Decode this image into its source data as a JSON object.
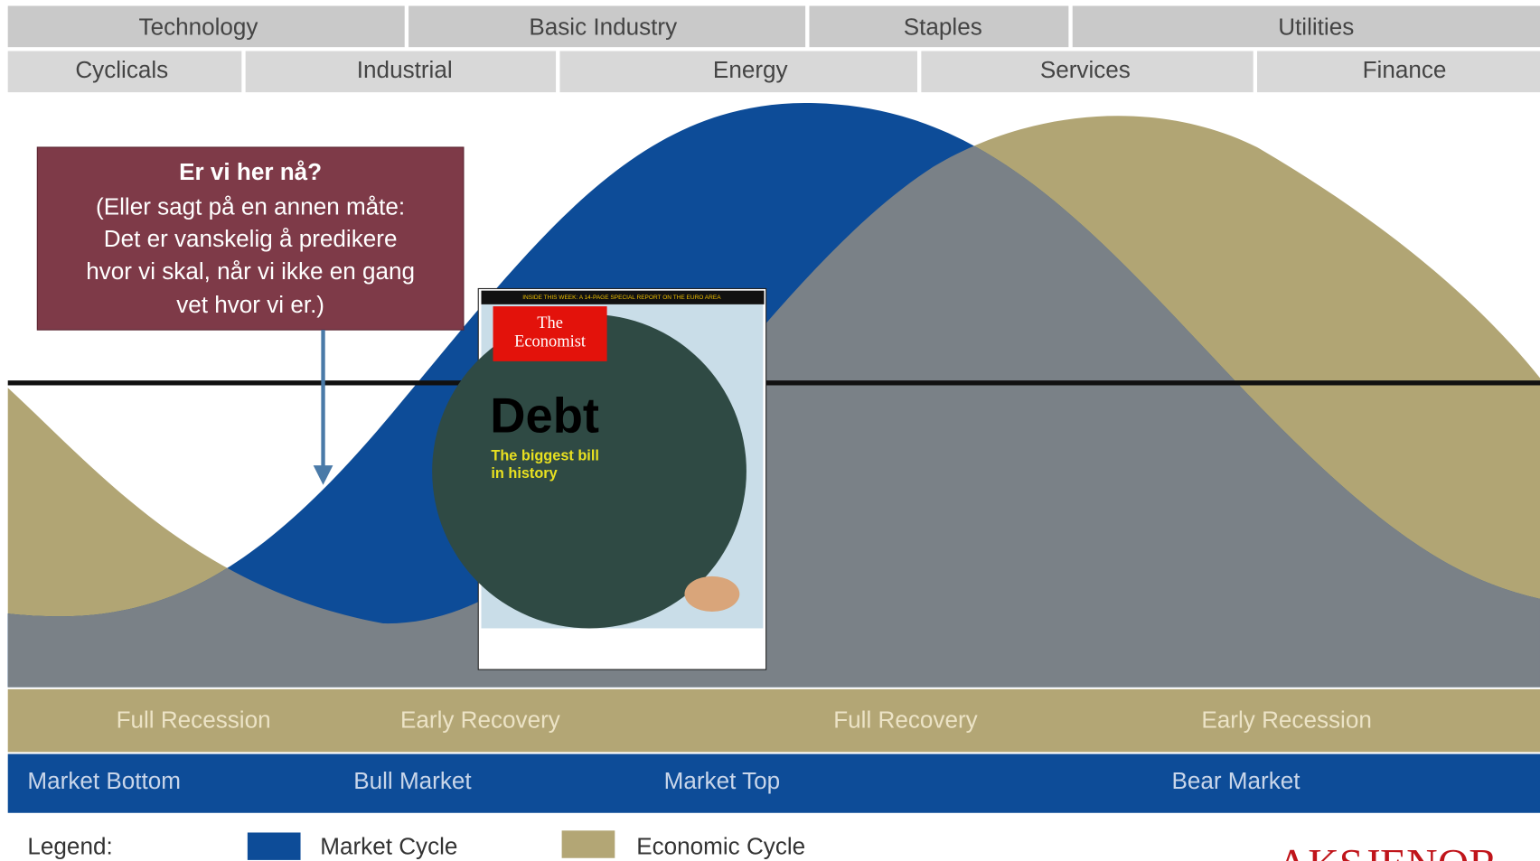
{
  "sectors_top": [
    "Technology",
    "Basic Industry",
    "Staples",
    "Utilities"
  ],
  "sectors_bottom": [
    "Cyclicals",
    "Industrial",
    "Energy",
    "Services",
    "Finance"
  ],
  "callout": {
    "title": "Er vi her nå?",
    "lines": [
      "(Eller sagt på en annen måte:",
      "Det er vanskelig å predikere",
      "hvor vi skal, når vi ikke en gang",
      "vet hvor vi er.)"
    ]
  },
  "magazine": {
    "banner": "INSIDE THIS WEEK: A 14-PAGE SPECIAL REPORT ON THE EURO AREA",
    "masthead": [
      "The",
      "Economist"
    ],
    "headline": "Debt",
    "subhead": [
      "The biggest bill",
      "in history"
    ]
  },
  "economic_phases": [
    "Full Recession",
    "Early Recovery",
    "Full Recovery",
    "Early Recession"
  ],
  "market_phases": [
    "Market Bottom",
    "Bull Market",
    "Market Top",
    "Bear Market"
  ],
  "legend": {
    "label": "Legend:",
    "items": [
      "Market Cycle",
      "Economic Cycle"
    ]
  },
  "brand": "AKSJENOR"
}
